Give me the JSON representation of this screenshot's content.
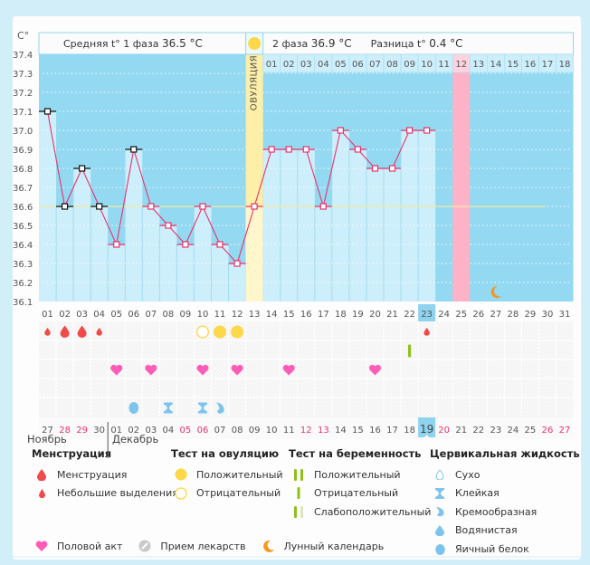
{
  "header": {
    "unit": "C°",
    "phase1_label": "Средняя t° 1 фаза",
    "phase1_value": "36.5 °C",
    "phase2_label": "2 фаза",
    "phase2_value": "36.9 °C",
    "diff_label": "Разница t°",
    "diff_value": "0.4 °C",
    "ovulation_label": "ОВУЛЯЦИЯ"
  },
  "colors": {
    "plot_bg": "#93d9f2",
    "bar_fill": "#cdeefb",
    "line": "#e8336b",
    "ovulation": "#fdeea8",
    "expected_period": "#fcb3c8",
    "coverline": "#f5eba0",
    "today": "#8fd3ef",
    "weekend": "#e8336b"
  },
  "chart_data": {
    "type": "line",
    "title": "",
    "xlabel": "",
    "ylabel": "C°",
    "ylim": [
      36.1,
      37.4
    ],
    "yticks": [
      "37.4",
      "37.3",
      "37.2",
      "37.1",
      "37.0",
      "36.9",
      "36.8",
      "36.7",
      "36.6",
      "36.5",
      "36.4",
      "36.3",
      "36.2",
      "36.1"
    ],
    "cycle_days": [
      "01",
      "02",
      "03",
      "04",
      "05",
      "06",
      "07",
      "08",
      "09",
      "10",
      "11",
      "12",
      "13",
      "14",
      "15",
      "16",
      "17",
      "18",
      "19",
      "20",
      "21",
      "22",
      "23",
      "24",
      "25",
      "26",
      "27",
      "28",
      "29",
      "30",
      "31"
    ],
    "temperatures": [
      37.1,
      36.6,
      36.8,
      36.6,
      36.4,
      36.9,
      36.6,
      36.5,
      36.4,
      36.6,
      36.4,
      36.3,
      36.6,
      36.9,
      36.9,
      36.9,
      36.6,
      37.0,
      36.9,
      36.8,
      36.8,
      37.0,
      37.0,
      null,
      null,
      null,
      null,
      null,
      null,
      null,
      null
    ],
    "marker_style": [
      "black",
      "black",
      "black",
      "black",
      "pink",
      "black",
      "pink",
      "pink",
      "pink",
      "pink",
      "pink",
      "pink",
      "pink",
      "pink",
      "pink",
      "pink",
      "pink",
      "pink",
      "pink",
      "pink",
      "pink",
      "pink",
      "pink",
      null,
      null,
      null,
      null,
      null,
      null,
      null,
      null
    ],
    "coverline": 36.6,
    "ovulation_day": 13,
    "expected_period_day": 25,
    "today_day": 23,
    "moon_day": 27,
    "post_ovulation_days": [
      "01",
      "02",
      "03",
      "04",
      "05",
      "06",
      "07",
      "08",
      "09",
      "10",
      "11",
      "12",
      "13",
      "14",
      "15",
      "16",
      "17",
      "18"
    ],
    "post_ovulation_highlight": "12",
    "calendar_dates": [
      "27",
      "28",
      "29",
      "30",
      "01",
      "02",
      "03",
      "04",
      "05",
      "06",
      "07",
      "08",
      "09",
      "10",
      "11",
      "12",
      "13",
      "14",
      "15",
      "16",
      "17",
      "18",
      "19",
      "20",
      "21",
      "22",
      "23",
      "24",
      "25",
      "26",
      "27"
    ],
    "calendar_weekend_idx": [
      1,
      2,
      8,
      9,
      15,
      16,
      23,
      29,
      30
    ],
    "calendar_today_idx": 22,
    "months": [
      "Ноябрь",
      "Декабрь"
    ],
    "month_break_idx": 4,
    "rows": {
      "menstruation": [
        {
          "day": 1,
          "type": "light"
        },
        {
          "day": 2,
          "type": "heavy"
        },
        {
          "day": 3,
          "type": "heavy"
        },
        {
          "day": 4,
          "type": "light"
        },
        {
          "day": 23,
          "type": "light"
        }
      ],
      "ovulation_test": [
        {
          "day": 10,
          "type": "negative"
        },
        {
          "day": 11,
          "type": "positive"
        },
        {
          "day": 12,
          "type": "positive"
        }
      ],
      "pregnancy_test": [
        {
          "day": 22,
          "type": "negative"
        }
      ],
      "intercourse": [
        5,
        7,
        10,
        12,
        15,
        20
      ],
      "medication": [],
      "cervical_fluid": [
        {
          "day": 6,
          "type": "egg-white"
        },
        {
          "day": 8,
          "type": "sticky"
        },
        {
          "day": 10,
          "type": "sticky"
        },
        {
          "day": 11,
          "type": "creamy"
        }
      ]
    }
  },
  "legend": {
    "menstruation": {
      "title": "Менструация",
      "items": [
        "Менструация",
        "Небольшие выделения"
      ]
    },
    "ovulation_test": {
      "title": "Тест на овуляцию",
      "items": [
        "Положительный",
        "Отрицательный"
      ]
    },
    "pregnancy_test": {
      "title": "Тест на беременность",
      "items": [
        "Положительный",
        "Отрицательный",
        "Слабоположительный"
      ]
    },
    "cervical_fluid": {
      "title": "Цервикальная жидкость",
      "items": [
        "Сухо",
        "Клейкая",
        "Кремообразная",
        "Водянистая",
        "Яичный белок"
      ]
    },
    "other": [
      "Половой акт",
      "Прием лекарств",
      "Лунный календарь"
    ]
  }
}
